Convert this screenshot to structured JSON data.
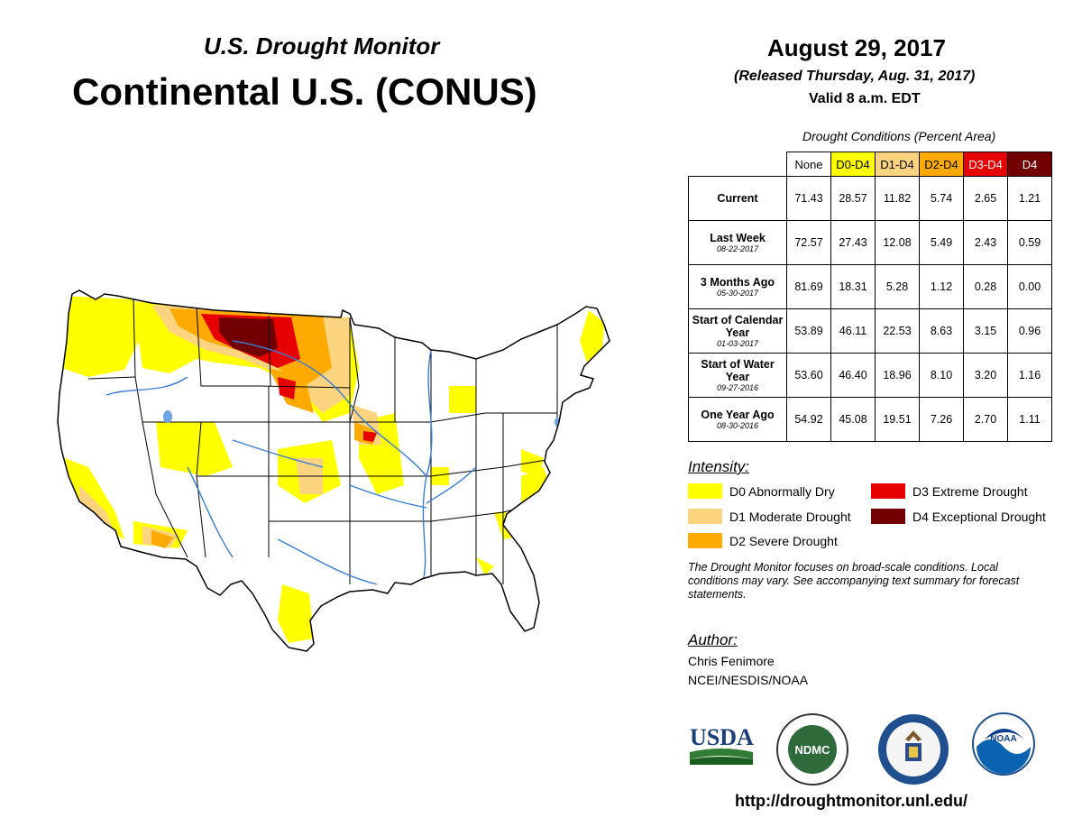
{
  "header": {
    "subtitle": "U.S. Drought Monitor",
    "title": "Continental U.S. (CONUS)",
    "date": "August 29, 2017",
    "released": "(Released Thursday, Aug. 31, 2017)",
    "valid": "Valid 8 a.m. EDT"
  },
  "table": {
    "caption": "Drought Conditions (Percent Area)",
    "columns": [
      {
        "label": "None",
        "color": "#ffffff"
      },
      {
        "label": "D0-D4",
        "color": "#ffff00"
      },
      {
        "label": "D1-D4",
        "color": "#fcd37f"
      },
      {
        "label": "D2-D4",
        "color": "#ffaa00"
      },
      {
        "label": "D3-D4",
        "color": "#e60000"
      },
      {
        "label": "D4",
        "color": "#730000"
      }
    ],
    "rows": [
      {
        "label": "Current",
        "sub": "",
        "values": [
          "71.43",
          "28.57",
          "11.82",
          "5.74",
          "2.65",
          "1.21"
        ]
      },
      {
        "label": "Last Week",
        "sub": "08-22-2017",
        "values": [
          "72.57",
          "27.43",
          "12.08",
          "5.49",
          "2.43",
          "0.59"
        ]
      },
      {
        "label": "3 Months Ago",
        "sub": "05-30-2017",
        "values": [
          "81.69",
          "18.31",
          "5.28",
          "1.12",
          "0.28",
          "0.00"
        ]
      },
      {
        "label": "Start of Calendar Year",
        "sub": "01-03-2017",
        "values": [
          "53.89",
          "46.11",
          "22.53",
          "8.63",
          "3.15",
          "0.96"
        ]
      },
      {
        "label": "Start of Water Year",
        "sub": "09-27-2016",
        "values": [
          "53.60",
          "46.40",
          "18.96",
          "8.10",
          "3.20",
          "1.16"
        ]
      },
      {
        "label": "One Year Ago",
        "sub": "08-30-2016",
        "values": [
          "54.92",
          "45.08",
          "19.51",
          "7.26",
          "2.70",
          "1.11"
        ]
      }
    ]
  },
  "legend": {
    "heading": "Intensity:",
    "items": [
      {
        "label": "D0 Abnormally Dry",
        "color": "#ffff00"
      },
      {
        "label": "D1 Moderate Drought",
        "color": "#fcd37f"
      },
      {
        "label": "D2 Severe Drought",
        "color": "#ffaa00"
      },
      {
        "label": "D3 Extreme Drought",
        "color": "#e60000"
      },
      {
        "label": "D4 Exceptional Drought",
        "color": "#730000"
      }
    ]
  },
  "note": "The Drought Monitor focuses on broad-scale conditions. Local conditions may vary. See accompanying text summary for forecast statements.",
  "author": {
    "heading": "Author:",
    "name": "Chris Fenimore",
    "org": "NCEI/NESDIS/NOAA"
  },
  "logos": {
    "usda": "USDA",
    "ndmc": "NDMC",
    "noaa": "NOAA",
    "doc": "department-of-commerce-seal"
  },
  "url": "http://droughtmonitor.unl.edu/",
  "map": {
    "region": "CONUS",
    "colors": {
      "land": "#ffffff",
      "water": "#3a7bd5",
      "border": "#000000"
    }
  }
}
